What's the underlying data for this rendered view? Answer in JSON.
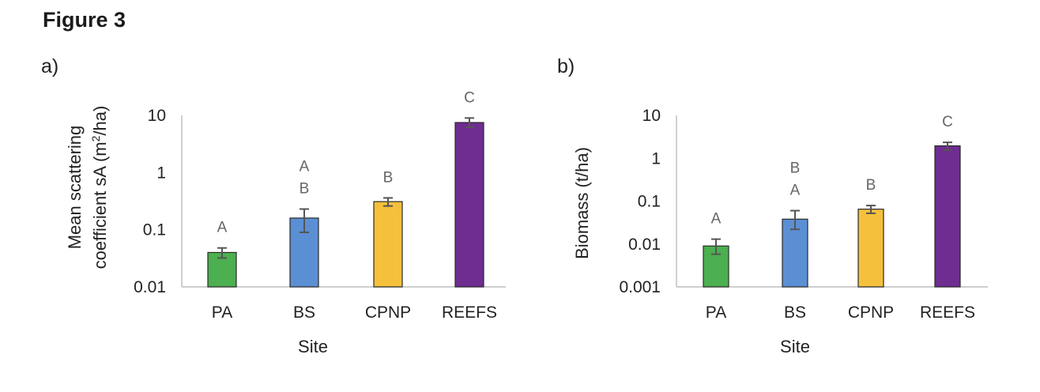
{
  "figure_title": "Figure 3",
  "colors": {
    "PA": "#4caf50",
    "BS": "#5b8fd3",
    "CPNP": "#f5c03c",
    "REEFS": "#6f2c91",
    "axis": "#bfbfbf",
    "errorbar": "#555555",
    "letters": "#666666"
  },
  "chart_data": [
    {
      "type": "bar",
      "panel_label": "a)",
      "categories": [
        "PA",
        "BS",
        "CPNP",
        "REEFS"
      ],
      "values": [
        0.04,
        0.16,
        0.31,
        7.5
      ],
      "error_low": [
        0.032,
        0.09,
        0.26,
        6.2
      ],
      "error_high": [
        0.048,
        0.23,
        0.36,
        9.0
      ],
      "significance_letters": [
        "A",
        "A\nB",
        "B",
        "C"
      ],
      "xlabel": "Site",
      "ylabel_line1": "Mean scattering",
      "ylabel_line2_pre": "coefficient sA (m",
      "ylabel_sup": "2",
      "ylabel_line2_post": "/ha)",
      "yscale": "log",
      "ylim": [
        0.01,
        10
      ],
      "yticks": [
        "0.01",
        "0.1",
        "1",
        "10"
      ],
      "grid": false,
      "legend": "none"
    },
    {
      "type": "bar",
      "panel_label": "b)",
      "categories": [
        "PA",
        "BS",
        "CPNP",
        "REEFS"
      ],
      "values": [
        0.009,
        0.038,
        0.065,
        1.95
      ],
      "error_low": [
        0.0058,
        0.022,
        0.052,
        1.55
      ],
      "error_high": [
        0.013,
        0.06,
        0.079,
        2.35
      ],
      "significance_letters": [
        "A",
        "B\nA",
        "B",
        "C"
      ],
      "xlabel": "Site",
      "ylabel": "Biomass (t/ha)",
      "yscale": "log",
      "ylim": [
        0.001,
        10
      ],
      "yticks": [
        "0.001",
        "0.01",
        "0.1",
        "1",
        "10"
      ],
      "grid": false,
      "legend": "none"
    }
  ]
}
